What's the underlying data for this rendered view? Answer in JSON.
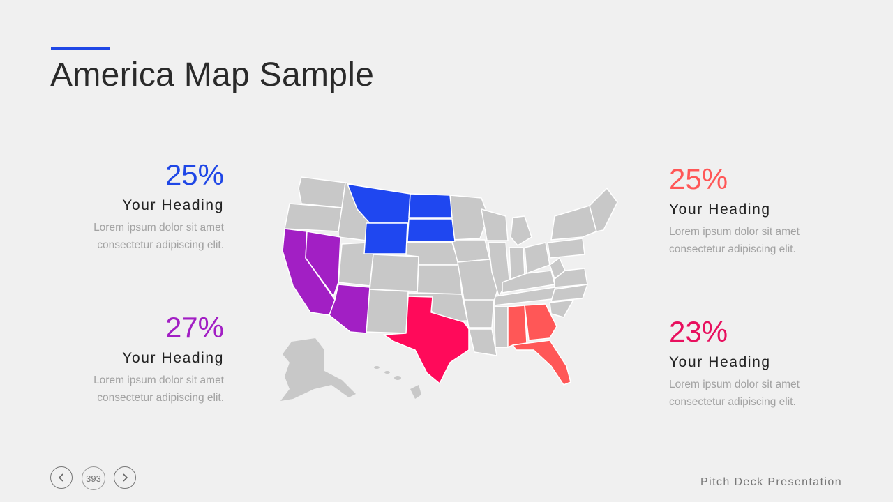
{
  "title": "America Map Sample",
  "colors": {
    "accent": "#1f47e6",
    "blue": "#1f47f0",
    "purple": "#a21fc4",
    "pink": "#ff0a5a",
    "coral": "#ff5757",
    "gray": "#c8c8c8"
  },
  "stats": [
    {
      "percent": "25%",
      "heading": "Your Heading",
      "line1": "Lorem ipsum dolor sit amet",
      "line2": "consectetur adipiscing elit."
    },
    {
      "percent": "27%",
      "heading": "Your Heading",
      "line1": "Lorem ipsum dolor sit amet",
      "line2": "consectetur adipiscing elit."
    },
    {
      "percent": "25%",
      "heading": "Your Heading",
      "line1": "Lorem ipsum dolor sit amet",
      "line2": "consectetur adipiscing elit."
    },
    {
      "percent": "23%",
      "heading": "Your Heading",
      "line1": "Lorem ipsum dolor sit amet",
      "line2": "consectetur adipiscing elit."
    }
  ],
  "footer": {
    "page": "393",
    "label": "Pitch Deck Presentation",
    "prev_icon": "chevron-left-icon",
    "next_icon": "chevron-right-icon"
  }
}
